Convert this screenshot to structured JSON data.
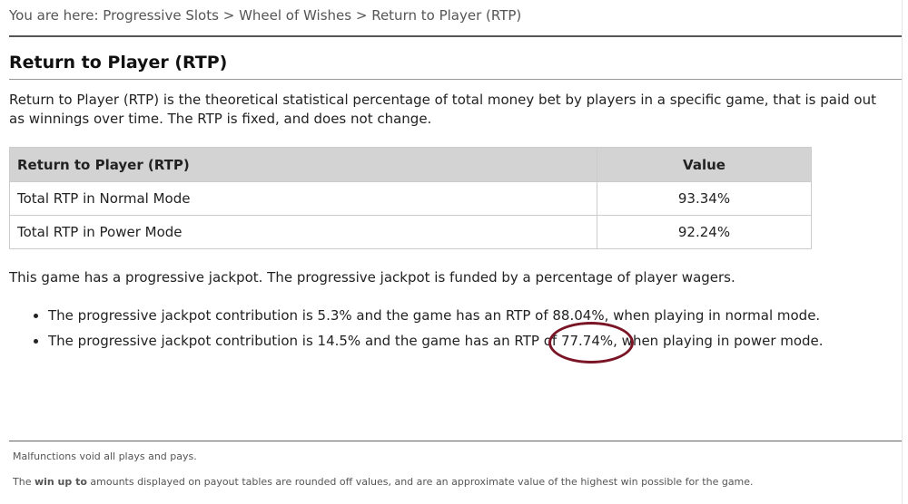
{
  "breadcrumb": {
    "label": "You are here:",
    "separator": ">",
    "items": [
      "Progressive Slots",
      "Wheel of Wishes",
      "Return to Player (RTP)"
    ]
  },
  "heading": "Return to Player (RTP)",
  "intro": "Return to Player (RTP) is the theoretical statistical percentage of total money bet by players in a specific game, that is paid out as winnings over time. The RTP is fixed, and does not change.",
  "table": {
    "header": [
      "Return to Player (RTP)",
      "Value"
    ],
    "rows": [
      [
        "Total RTP in Normal Mode",
        "93.34%"
      ],
      [
        "Total RTP in Power Mode",
        "92.24%"
      ]
    ]
  },
  "jackpot_text": "This game has a progressive jackpot. The progressive jackpot is funded by a percentage of player wagers.",
  "bullets": [
    {
      "before": "The progressive jackpot contribution is 5.3% and the game has an RTP of 88.04%, when playing in normal mode."
    },
    {
      "before": "The progressive jackpot contribution is 14.5% and the game has an RTP of ",
      "highlight": "77.74%",
      "after": ", when playing in power mode."
    }
  ],
  "footer": {
    "line1": "Malfunctions void all plays and pays.",
    "line2": {
      "before": "The ",
      "bold": "win up to",
      "after": " amounts displayed on payout tables are rounded off values, and are an approximate value of the highest win possible for the game."
    }
  }
}
